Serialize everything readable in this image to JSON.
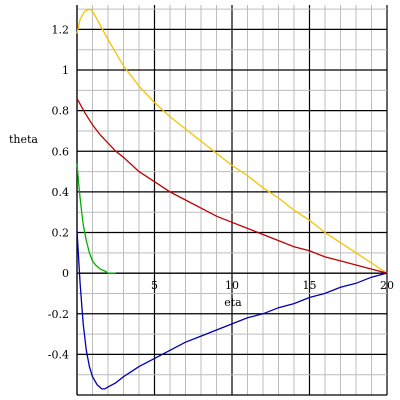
{
  "chart_data": {
    "type": "line",
    "xlabel": "eta",
    "ylabel": "theta",
    "xlim": [
      0,
      20
    ],
    "ylim": [
      -0.6,
      1.32
    ],
    "grid": true,
    "x_ticks": [
      5,
      10,
      15,
      20
    ],
    "y_ticks": [
      -0.4,
      -0.2,
      0,
      0.2,
      0.4,
      0.6,
      0.8,
      1,
      1.2
    ],
    "series": [
      {
        "color": "#f5c400",
        "x": [
          0,
          0.2,
          0.5,
          0.8,
          1,
          1.5,
          2,
          3,
          4,
          5,
          6,
          7,
          8,
          9,
          10,
          11,
          12,
          13,
          14,
          15,
          16,
          17,
          18,
          19,
          20
        ],
        "y": [
          1.18,
          1.25,
          1.29,
          1.3,
          1.29,
          1.22,
          1.15,
          1.02,
          0.92,
          0.84,
          0.77,
          0.71,
          0.65,
          0.59,
          0.53,
          0.48,
          0.42,
          0.37,
          0.31,
          0.26,
          0.2,
          0.15,
          0.1,
          0.05,
          0
        ]
      },
      {
        "color": "#c00000",
        "x": [
          0,
          0.5,
          1,
          1.5,
          2,
          2.5,
          3,
          4,
          5,
          6,
          7,
          8,
          9,
          10,
          11,
          12,
          13,
          14,
          15,
          16,
          17,
          18,
          19,
          20
        ],
        "y": [
          0.86,
          0.79,
          0.73,
          0.68,
          0.64,
          0.6,
          0.57,
          0.5,
          0.45,
          0.4,
          0.36,
          0.32,
          0.28,
          0.25,
          0.22,
          0.19,
          0.16,
          0.13,
          0.11,
          0.08,
          0.06,
          0.04,
          0.02,
          0
        ]
      },
      {
        "color": "#00b000",
        "x": [
          0,
          0.1,
          0.2,
          0.3,
          0.4,
          0.6,
          0.8,
          1,
          1.2,
          1.5,
          1.8,
          2,
          2.5
        ],
        "y": [
          0.54,
          0.45,
          0.37,
          0.3,
          0.24,
          0.16,
          0.1,
          0.06,
          0.04,
          0.02,
          0.01,
          0,
          0
        ]
      },
      {
        "color": "#0000b0",
        "x": [
          0,
          0.2,
          0.4,
          0.6,
          0.8,
          1,
          1.3,
          1.6,
          1.8,
          2,
          2.5,
          3,
          4,
          5,
          6,
          7,
          8,
          9,
          10,
          11,
          12,
          13,
          14,
          15,
          16,
          17,
          18,
          19,
          20
        ],
        "y": [
          0.21,
          -0.05,
          -0.25,
          -0.38,
          -0.46,
          -0.51,
          -0.55,
          -0.57,
          -0.57,
          -0.56,
          -0.54,
          -0.51,
          -0.46,
          -0.42,
          -0.38,
          -0.34,
          -0.31,
          -0.28,
          -0.25,
          -0.22,
          -0.2,
          -0.17,
          -0.15,
          -0.12,
          -0.1,
          -0.07,
          -0.05,
          -0.02,
          0
        ]
      }
    ]
  }
}
